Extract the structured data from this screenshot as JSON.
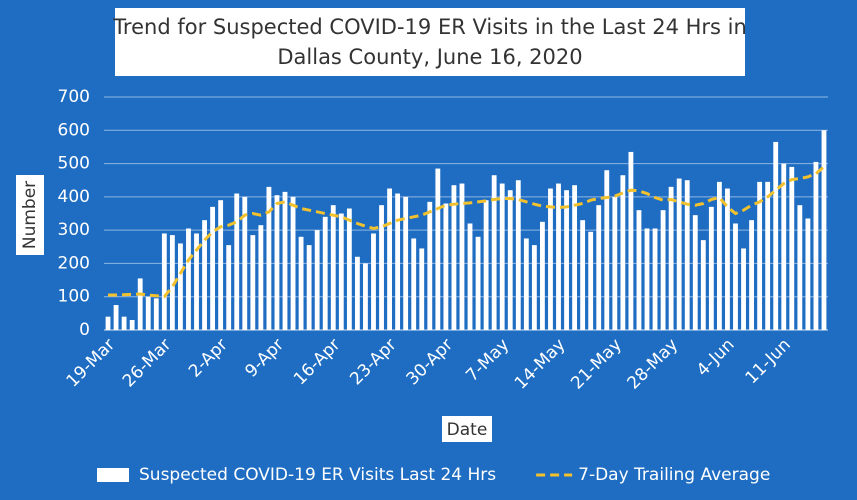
{
  "chart_data": {
    "type": "bar",
    "title": "Trend for Suspected COVID-19 ER Visits in the Last 24 Hrs in",
    "subtitle": "Dallas County, June 16, 2020",
    "x_label": "Date",
    "y_label": "Number",
    "ylim": [
      0,
      700
    ],
    "yticks": [
      0,
      100,
      200,
      300,
      400,
      500,
      600,
      700
    ],
    "grid": true,
    "legend": "bottom",
    "categories": [
      "19-Mar",
      null,
      null,
      null,
      null,
      null,
      null,
      "26-Mar",
      null,
      null,
      null,
      null,
      null,
      null,
      "2-Apr",
      null,
      null,
      null,
      null,
      null,
      null,
      "9-Apr",
      null,
      null,
      null,
      null,
      null,
      null,
      "16-Apr",
      null,
      null,
      null,
      null,
      null,
      null,
      "23-Apr",
      null,
      null,
      null,
      null,
      null,
      null,
      "30-Apr",
      null,
      null,
      null,
      null,
      null,
      null,
      "7-May",
      null,
      null,
      null,
      null,
      null,
      null,
      "14-May",
      null,
      null,
      null,
      null,
      null,
      null,
      "21-May",
      null,
      null,
      null,
      null,
      null,
      null,
      "28-May",
      null,
      null,
      null,
      null,
      null,
      null,
      "4-Jun",
      null,
      null,
      null,
      null,
      null,
      null,
      "11-Jun",
      null,
      null,
      null,
      null,
      null
    ],
    "series": [
      {
        "name": "Suspected COVID-19 ER Visits Last 24 Hrs",
        "type": "bar",
        "color": "#ffffff",
        "values": [
          40,
          75,
          40,
          30,
          155,
          100,
          95,
          290,
          285,
          260,
          305,
          290,
          330,
          370,
          390,
          255,
          410,
          400,
          285,
          315,
          430,
          405,
          415,
          400,
          280,
          255,
          300,
          340,
          375,
          350,
          365,
          220,
          200,
          290,
          375,
          425,
          410,
          400,
          275,
          245,
          385,
          485,
          380,
          435,
          440,
          320,
          280,
          390,
          465,
          440,
          420,
          450,
          275,
          255,
          325,
          425,
          440,
          420,
          435,
          330,
          295,
          375,
          480,
          400,
          465,
          535,
          360,
          305,
          305,
          360,
          430,
          455,
          450,
          345,
          270,
          370,
          445,
          425,
          320,
          245,
          330,
          445,
          445,
          565,
          500,
          490,
          375,
          335,
          505,
          600
        ]
      },
      {
        "name": "7-Day Trailing Average",
        "type": "line",
        "color": "#f2c12e",
        "values": [
          105,
          105,
          106,
          107,
          108,
          105,
          103,
          100,
          130,
          170,
          210,
          240,
          270,
          295,
          310,
          315,
          325,
          345,
          350,
          345,
          355,
          380,
          385,
          375,
          365,
          360,
          355,
          350,
          345,
          340,
          330,
          320,
          312,
          305,
          310,
          320,
          330,
          335,
          340,
          345,
          355,
          365,
          375,
          378,
          380,
          382,
          385,
          388,
          392,
          395,
          395,
          392,
          385,
          378,
          372,
          370,
          368,
          370,
          375,
          380,
          390,
          395,
          398,
          402,
          412,
          420,
          418,
          410,
          398,
          390,
          392,
          385,
          378,
          375,
          380,
          392,
          398,
          370,
          350,
          360,
          375,
          385,
          400,
          420,
          440,
          452,
          455,
          460,
          470,
          490
        ]
      }
    ]
  }
}
